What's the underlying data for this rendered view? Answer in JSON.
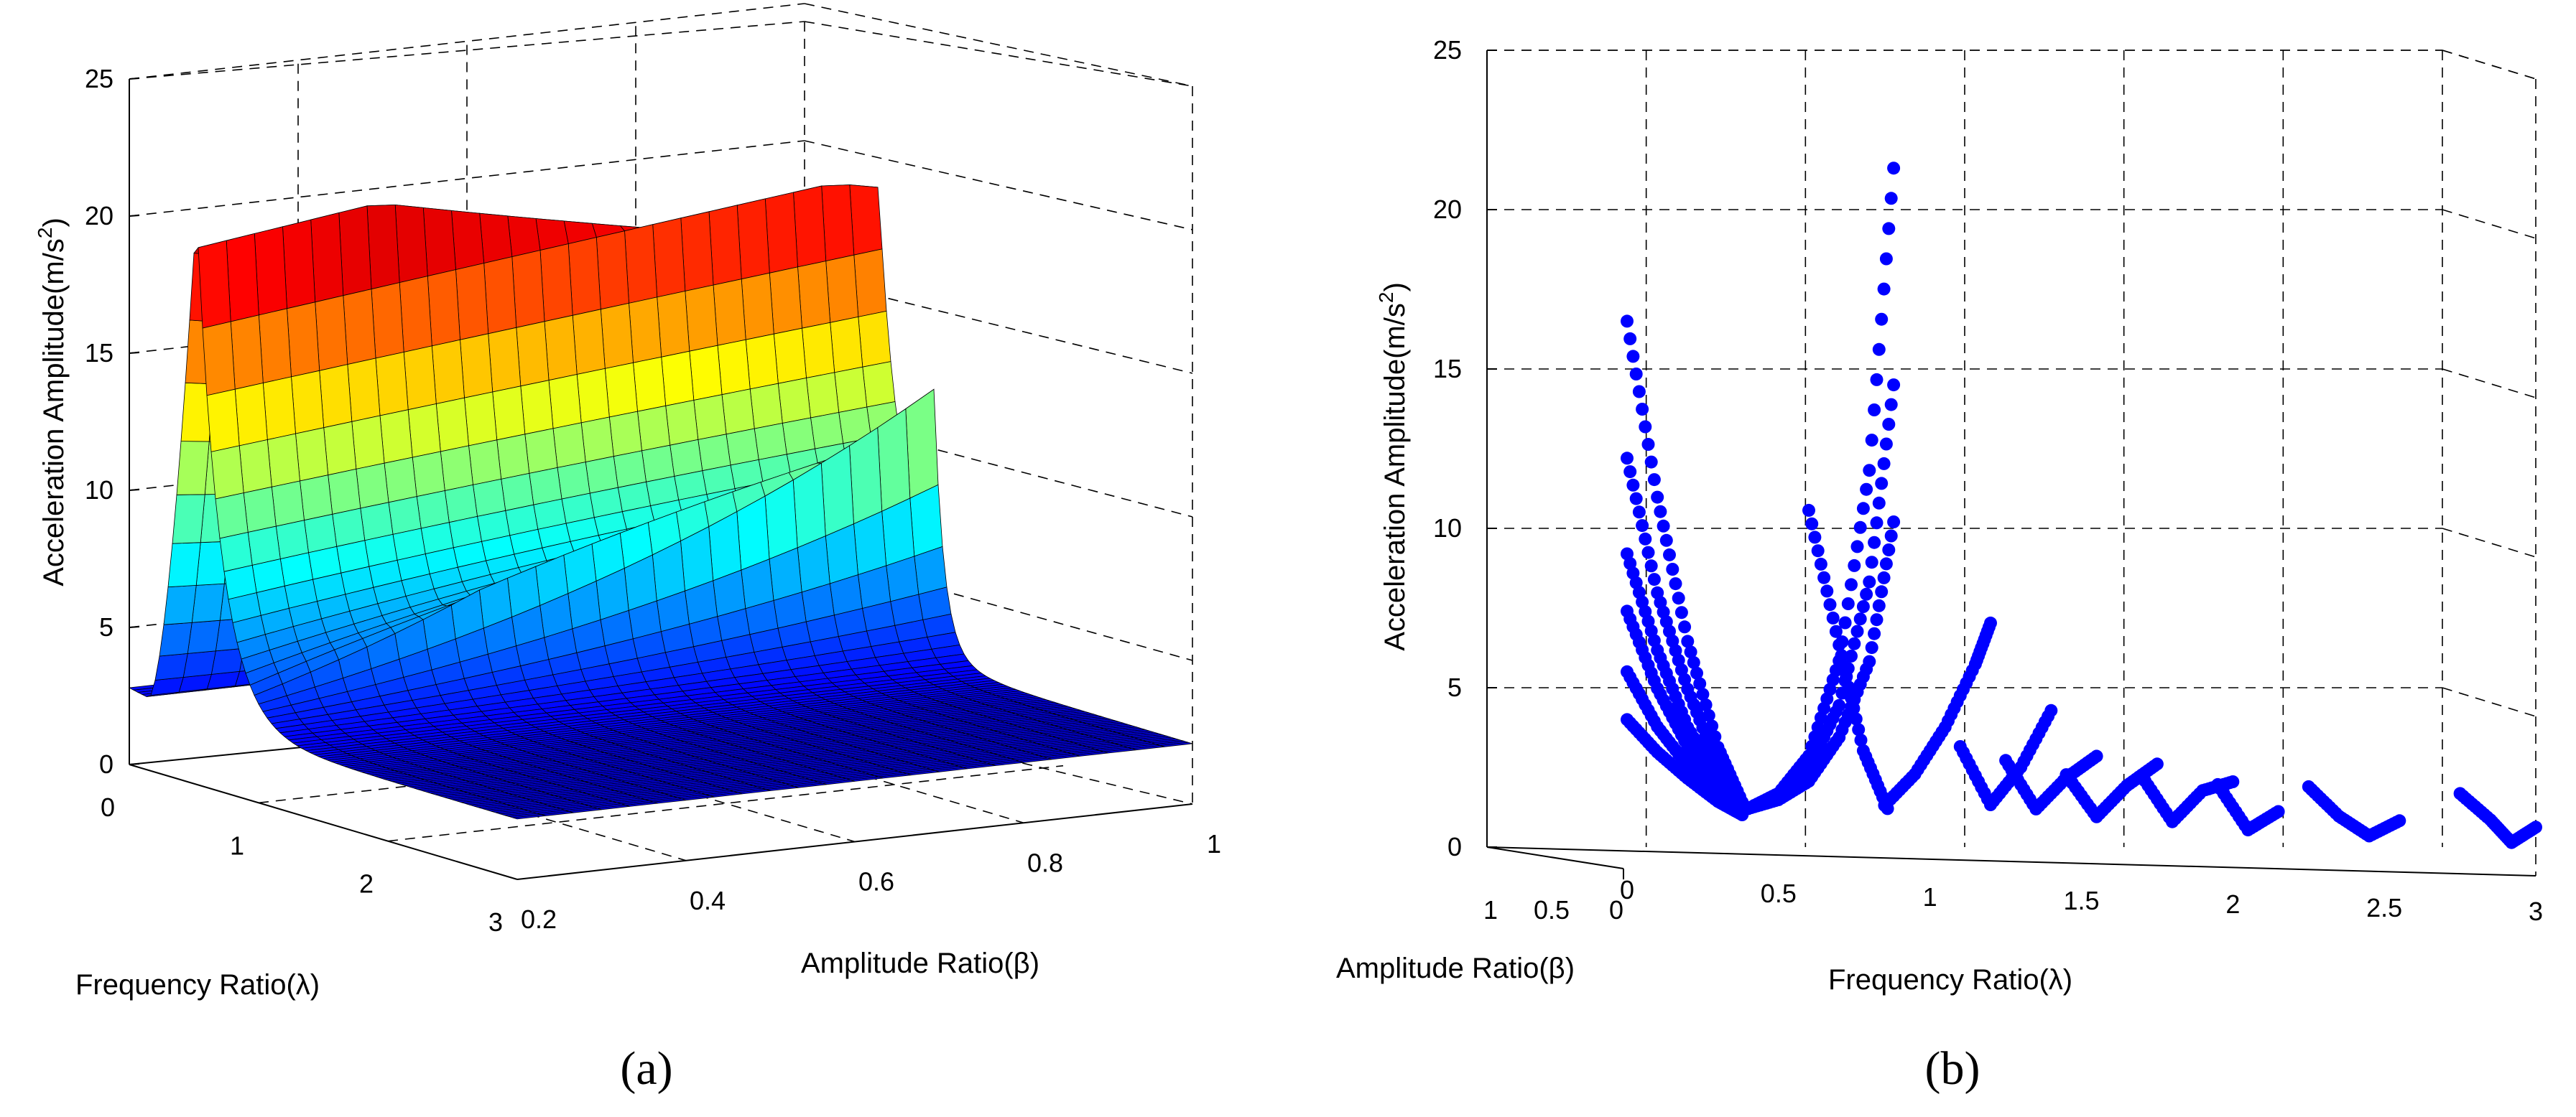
{
  "chart_data": [
    {
      "panel_label": "(a)",
      "type": "surface3d",
      "zlabel": "Acceleration Amplitude(m/s2)",
      "zlabel_main": "Acceleration Amplitude(m/s",
      "zlabel_sup": "2",
      "zlabel_tail": ")",
      "xlabel": "Frequency Ratio(λ)",
      "ylabel": "Amplitude Ratio(β)",
      "z_ticks": [
        "0",
        "5",
        "10",
        "15",
        "20",
        "25"
      ],
      "x_ticks": [
        "0",
        "1",
        "2",
        "3"
      ],
      "y_ticks": [
        "0.2",
        "0.4",
        "0.6",
        "0.8",
        "1"
      ],
      "zlim": [
        0,
        25
      ],
      "xlim": [
        0,
        3
      ],
      "ylim": [
        0.2,
        1
      ],
      "colormap": "jet",
      "colormap_colors": [
        "#00008f",
        "#0000ff",
        "#0080ff",
        "#00ffff",
        "#80ff80",
        "#ffff00",
        "#ff8000",
        "#ff0000",
        "#800000"
      ],
      "ridges": [
        {
          "name": "ridge near λ≈0.5 (peak at β=0.2)",
          "peak_z": 20.5
        },
        {
          "name": "ridge near λ≈0.5 (max at β=1)",
          "peak_z": 19.0
        },
        {
          "name": "secondary ridge near λ≈1",
          "peak_z": 11.0
        }
      ],
      "baseline_z": 2.5
    },
    {
      "panel_label": "(b)",
      "type": "scatter3d",
      "zlabel": "Acceleration Amplitude(m/s2)",
      "zlabel_main": "Acceleration Amplitude(m/s",
      "zlabel_sup": "2",
      "zlabel_tail": ")",
      "xlabel": "Frequency Ratio(λ)",
      "ylabel": "Amplitude Ratio(β)",
      "z_ticks": [
        "0",
        "5",
        "10",
        "15",
        "20",
        "25"
      ],
      "x_ticks": [
        "0",
        "0.5",
        "1",
        "1.5",
        "2",
        "2.5",
        "3"
      ],
      "y_ticks": [
        "1",
        "0.5",
        "0"
      ],
      "zlim": [
        0,
        25
      ],
      "xlim": [
        0,
        3
      ],
      "marker_color": "#0000ff",
      "series": [
        {
          "name": "left branch 1",
          "x": [
            0.0,
            0.1,
            0.2,
            0.3,
            0.38
          ],
          "z": [
            16.5,
            11.0,
            6.5,
            3.2,
            1.5
          ]
        },
        {
          "name": "left branch 2",
          "x": [
            0.0,
            0.1,
            0.2,
            0.3,
            0.38
          ],
          "z": [
            12.2,
            8.0,
            5.0,
            2.6,
            1.4
          ]
        },
        {
          "name": "left branch 3",
          "x": [
            0.0,
            0.1,
            0.2,
            0.3,
            0.38
          ],
          "z": [
            9.2,
            6.2,
            3.8,
            2.2,
            1.3
          ]
        },
        {
          "name": "left branch 4",
          "x": [
            0.0,
            0.1,
            0.2,
            0.3,
            0.38
          ],
          "z": [
            7.4,
            5.0,
            3.2,
            1.9,
            1.2
          ]
        },
        {
          "name": "left branch 5",
          "x": [
            0.0,
            0.1,
            0.2,
            0.3,
            0.38
          ],
          "z": [
            5.5,
            3.8,
            2.6,
            1.7,
            1.2
          ]
        },
        {
          "name": "left branch 6",
          "x": [
            0.0,
            0.1,
            0.2,
            0.3,
            0.38
          ],
          "z": [
            4.0,
            3.0,
            2.2,
            1.5,
            1.1
          ]
        },
        {
          "name": "resonance rise 1",
          "x": [
            0.4,
            0.5,
            0.6,
            0.7,
            0.8,
            0.88
          ],
          "z": [
            1.3,
            1.8,
            3.0,
            6.0,
            12.0,
            21.5
          ]
        },
        {
          "name": "resonance rise 2",
          "x": [
            0.4,
            0.5,
            0.6,
            0.7,
            0.8,
            0.88
          ],
          "z": [
            1.3,
            1.7,
            2.6,
            4.6,
            8.5,
            14.7
          ]
        },
        {
          "name": "resonance rise 3",
          "x": [
            0.4,
            0.5,
            0.6,
            0.7,
            0.8,
            0.88
          ],
          "z": [
            1.3,
            1.6,
            2.2,
            3.6,
            6.0,
            10.4
          ]
        },
        {
          "name": "resonance fall 1",
          "x": [
            0.6,
            0.7,
            0.78,
            0.86
          ],
          "z": [
            10.7,
            6.5,
            3.2,
            1.4
          ]
        },
        {
          "name": "second ridge",
          "x": [
            0.85,
            0.95,
            1.05,
            1.15,
            1.2
          ],
          "z": [
            1.5,
            2.5,
            4.0,
            6.0,
            7.3
          ]
        },
        {
          "name": "V near 1.2",
          "x": [
            1.1,
            1.2,
            1.3,
            1.4
          ],
          "z": [
            3.4,
            1.6,
            2.8,
            4.6
          ]
        },
        {
          "name": "V near 1.35",
          "x": [
            1.25,
            1.35,
            1.45,
            1.55
          ],
          "z": [
            3.0,
            1.5,
            2.5,
            3.2
          ]
        },
        {
          "name": "V near 1.55",
          "x": [
            1.45,
            1.55,
            1.65,
            1.75
          ],
          "z": [
            2.6,
            1.3,
            2.3,
            3.0
          ]
        },
        {
          "name": "V near 1.8",
          "x": [
            1.7,
            1.8,
            1.9,
            2.0
          ],
          "z": [
            2.6,
            1.2,
            2.2,
            2.5
          ]
        },
        {
          "name": "V near 2.0",
          "x": [
            1.95,
            2.05,
            2.15
          ],
          "z": [
            2.4,
            1.0,
            1.6
          ]
        },
        {
          "name": "V near 2.35",
          "x": [
            2.25,
            2.35,
            2.45,
            2.55
          ],
          "z": [
            2.4,
            1.5,
            0.9,
            1.4
          ]
        },
        {
          "name": "V near 2.9",
          "x": [
            2.75,
            2.85,
            2.92,
            3.0
          ],
          "z": [
            2.3,
            1.5,
            0.8,
            1.3
          ]
        }
      ]
    }
  ]
}
